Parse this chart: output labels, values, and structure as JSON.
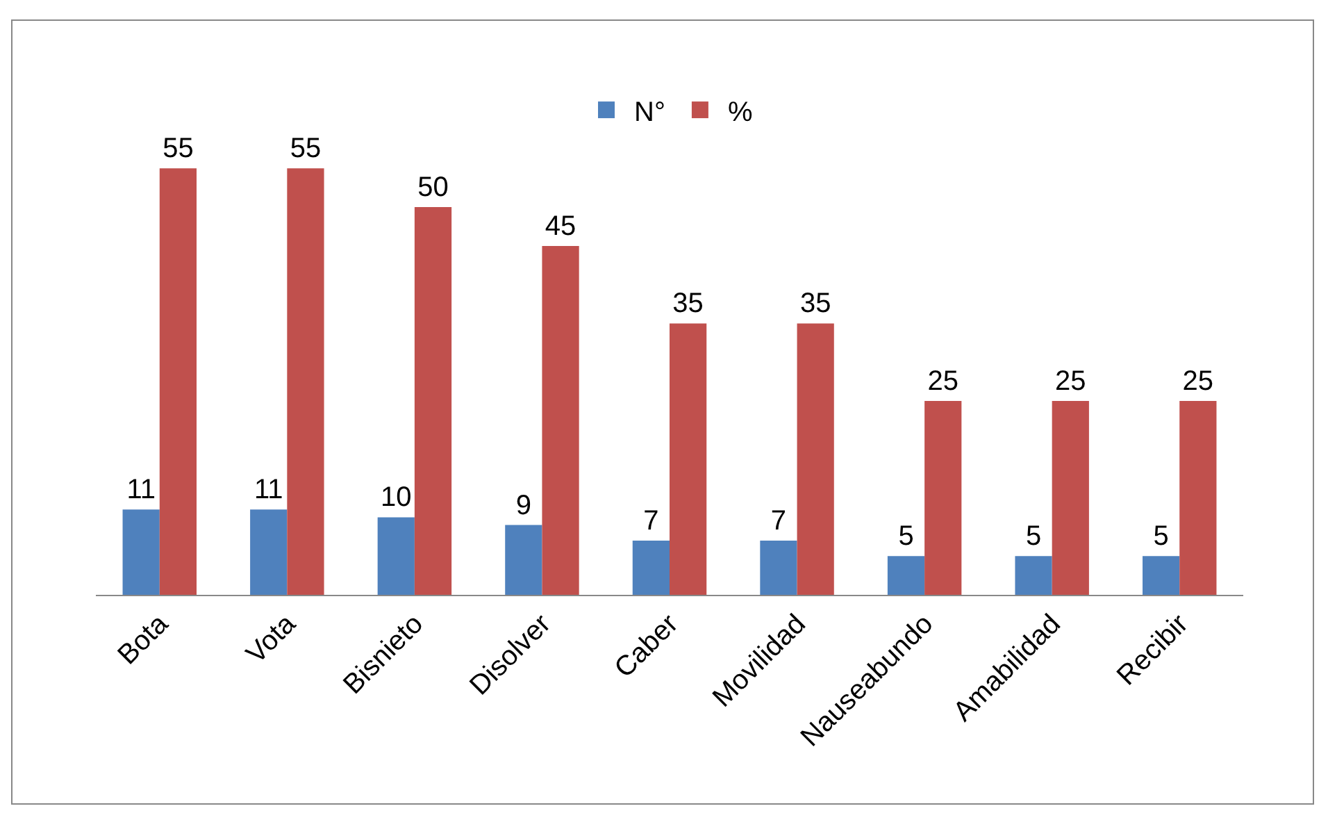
{
  "chart_data": {
    "type": "bar",
    "categories": [
      "Bota",
      "Vota",
      "Bisnieto",
      "Disolver",
      "Caber",
      "Movilidad",
      "Nauseabundo",
      "Amabilidad",
      "Recibir"
    ],
    "series": [
      {
        "name": "N°",
        "color": "#4f81bd",
        "values": [
          11,
          11,
          10,
          9,
          7,
          7,
          5,
          5,
          5
        ]
      },
      {
        "name": "%",
        "color": "#c0504d",
        "values": [
          55,
          55,
          50,
          45,
          35,
          35,
          25,
          25,
          25
        ]
      }
    ],
    "data_labels": true,
    "legend": "top"
  }
}
